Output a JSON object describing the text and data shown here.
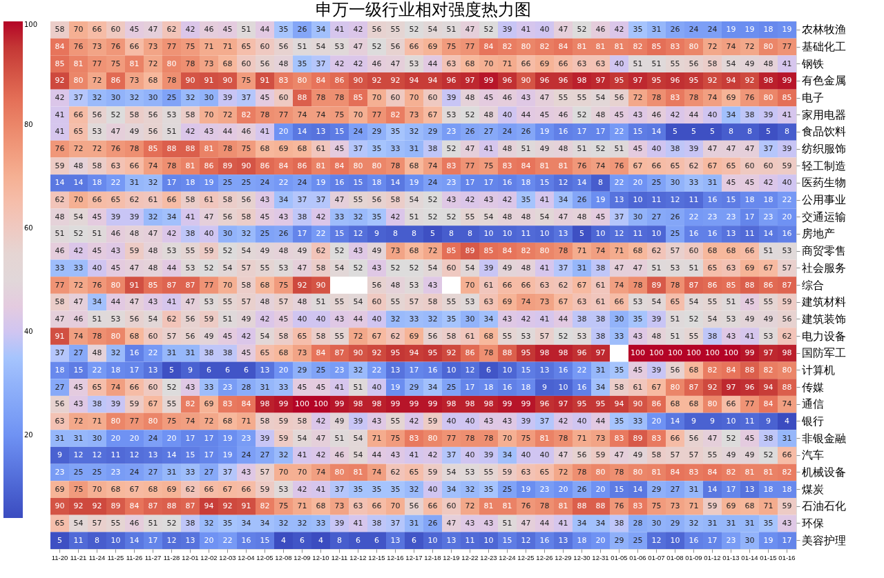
{
  "chart_data": {
    "type": "heatmap",
    "title": "申万一级行业相对强度热力图",
    "categories": [
      "11-20",
      "11-21",
      "11-24",
      "11-25",
      "11-26",
      "11-27",
      "11-28",
      "12-01",
      "12-02",
      "12-03",
      "12-04",
      "12-05",
      "12-08",
      "12-09",
      "12-10",
      "12-11",
      "12-12",
      "12-15",
      "12-16",
      "12-17",
      "12-18",
      "12-19",
      "12-22",
      "12-23",
      "12-24",
      "12-25",
      "12-26",
      "12-29",
      "12-30",
      "12-31",
      "01-05",
      "01-06",
      "01-07",
      "01-08",
      "01-09",
      "01-12",
      "01-13",
      "01-14",
      "01-15",
      "01-16"
    ],
    "y_categories": [
      "农林牧渔",
      "基础化工",
      "钢铁",
      "有色金属",
      "电子",
      "家用电器",
      "食品饮料",
      "纺织服饰",
      "轻工制造",
      "医药生物",
      "公用事业",
      "交通运输",
      "房地产",
      "商贸零售",
      "社会服务",
      "综合",
      "建筑材料",
      "建筑装饰",
      "电力设备",
      "国防军工",
      "计算机",
      "传媒",
      "通信",
      "银行",
      "非银金融",
      "汽车",
      "机械设备",
      "煤炭",
      "石油石化",
      "环保",
      "美容护理"
    ],
    "cells": [
      [
        58,
        70,
        66,
        60,
        45,
        47,
        62,
        42,
        46,
        45,
        51,
        44,
        35,
        26,
        34,
        41,
        42,
        56,
        55,
        52,
        54,
        51,
        47,
        52,
        39,
        41,
        40,
        47,
        52,
        46,
        42,
        35,
        31,
        26,
        24,
        24,
        19,
        19,
        18,
        19
      ],
      [
        84,
        76,
        73,
        76,
        66,
        73,
        77,
        75,
        71,
        71,
        65,
        60,
        56,
        51,
        54,
        53,
        47,
        52,
        56,
        66,
        69,
        75,
        77,
        84,
        82,
        80,
        82,
        84,
        81,
        81,
        81,
        82,
        85,
        83,
        80,
        72,
        74,
        72,
        80,
        77
      ],
      [
        85,
        81,
        77,
        75,
        81,
        72,
        80,
        78,
        73,
        68,
        60,
        56,
        48,
        35,
        37,
        42,
        42,
        46,
        47,
        53,
        44,
        63,
        68,
        70,
        71,
        66,
        69,
        66,
        63,
        63,
        40,
        51,
        51,
        55,
        56,
        58,
        54,
        49,
        48,
        41
      ],
      [
        92,
        80,
        72,
        86,
        73,
        68,
        78,
        90,
        91,
        90,
        75,
        91,
        83,
        80,
        84,
        86,
        90,
        92,
        92,
        94,
        94,
        96,
        97,
        99,
        96,
        90,
        96,
        96,
        98,
        97,
        95,
        97,
        95,
        96,
        95,
        92,
        94,
        92,
        98,
        99
      ],
      [
        42,
        37,
        32,
        30,
        32,
        30,
        25,
        32,
        30,
        39,
        37,
        45,
        60,
        88,
        78,
        78,
        85,
        70,
        60,
        70,
        60,
        39,
        48,
        45,
        46,
        43,
        47,
        55,
        55,
        54,
        56,
        72,
        78,
        83,
        78,
        74,
        69,
        76,
        80,
        85
      ],
      [
        41,
        66,
        56,
        52,
        58,
        56,
        53,
        58,
        70,
        72,
        82,
        78,
        77,
        74,
        74,
        75,
        70,
        77,
        82,
        73,
        67,
        53,
        52,
        48,
        40,
        44,
        45,
        46,
        52,
        48,
        45,
        43,
        46,
        42,
        44,
        40,
        34,
        38,
        39,
        41
      ],
      [
        41,
        65,
        53,
        47,
        49,
        56,
        51,
        42,
        43,
        44,
        46,
        41,
        20,
        14,
        13,
        15,
        24,
        29,
        35,
        32,
        29,
        23,
        26,
        27,
        24,
        26,
        19,
        16,
        17,
        17,
        22,
        15,
        14,
        5,
        5,
        5,
        8,
        8,
        5,
        8
      ],
      [
        76,
        72,
        72,
        76,
        78,
        85,
        88,
        88,
        81,
        78,
        75,
        68,
        69,
        68,
        61,
        45,
        37,
        35,
        33,
        31,
        38,
        52,
        47,
        41,
        48,
        51,
        49,
        48,
        51,
        52,
        51,
        45,
        40,
        38,
        39,
        47,
        47,
        47,
        37,
        39
      ],
      [
        59,
        48,
        58,
        63,
        66,
        74,
        78,
        81,
        86,
        89,
        90,
        86,
        84,
        86,
        81,
        84,
        80,
        80,
        78,
        68,
        74,
        83,
        77,
        75,
        83,
        84,
        81,
        81,
        76,
        74,
        76,
        67,
        66,
        65,
        62,
        67,
        65,
        60,
        60,
        59
      ],
      [
        14,
        14,
        18,
        22,
        31,
        32,
        17,
        18,
        19,
        25,
        25,
        24,
        22,
        24,
        19,
        16,
        15,
        18,
        14,
        19,
        24,
        23,
        17,
        17,
        16,
        18,
        15,
        12,
        14,
        8,
        22,
        20,
        25,
        30,
        33,
        31,
        45,
        45,
        42,
        40
      ],
      [
        62,
        70,
        66,
        65,
        62,
        61,
        66,
        58,
        61,
        58,
        56,
        43,
        34,
        37,
        37,
        47,
        55,
        56,
        58,
        54,
        52,
        43,
        42,
        43,
        42,
        35,
        41,
        34,
        26,
        19,
        13,
        10,
        11,
        12,
        11,
        16,
        15,
        18,
        18,
        22
      ],
      [
        48,
        54,
        45,
        39,
        39,
        32,
        34,
        41,
        47,
        56,
        58,
        45,
        43,
        38,
        42,
        33,
        32,
        35,
        42,
        51,
        52,
        52,
        55,
        54,
        48,
        48,
        54,
        47,
        48,
        45,
        37,
        30,
        27,
        26,
        22,
        23,
        23,
        17,
        23,
        20
      ],
      [
        51,
        52,
        51,
        46,
        48,
        47,
        42,
        38,
        40,
        30,
        32,
        25,
        26,
        17,
        22,
        15,
        12,
        9,
        8,
        8,
        5,
        8,
        8,
        10,
        10,
        11,
        10,
        13,
        5,
        10,
        12,
        11,
        10,
        25,
        16,
        16,
        13,
        11,
        14,
        16
      ],
      [
        46,
        42,
        45,
        43,
        59,
        48,
        53,
        55,
        59,
        52,
        54,
        49,
        48,
        49,
        62,
        52,
        43,
        49,
        73,
        68,
        72,
        85,
        89,
        85,
        84,
        82,
        80,
        78,
        71,
        74,
        71,
        68,
        62,
        57,
        60,
        68,
        68,
        66,
        51,
        53
      ],
      [
        33,
        33,
        40,
        45,
        47,
        48,
        44,
        53,
        52,
        54,
        57,
        55,
        53,
        47,
        58,
        54,
        52,
        43,
        52,
        52,
        54,
        60,
        54,
        39,
        49,
        48,
        41,
        37,
        31,
        38,
        47,
        47,
        51,
        53,
        51,
        65,
        63,
        69,
        67,
        57
      ],
      [
        77,
        72,
        76,
        80,
        91,
        85,
        87,
        87,
        77,
        70,
        58,
        68,
        75,
        92,
        90,
        null,
        null,
        56,
        48,
        53,
        43,
        null,
        70,
        61,
        66,
        66,
        63,
        62,
        67,
        61,
        74,
        78,
        89,
        78,
        87,
        86,
        85,
        88,
        86,
        87
      ],
      [
        58,
        47,
        34,
        44,
        47,
        43,
        41,
        47,
        53,
        55,
        57,
        48,
        57,
        48,
        51,
        55,
        54,
        60,
        55,
        57,
        58,
        55,
        53,
        63,
        69,
        74,
        73,
        67,
        63,
        61,
        66,
        53,
        54,
        65,
        54,
        55,
        51,
        45,
        55,
        59
      ],
      [
        47,
        46,
        51,
        53,
        56,
        54,
        62,
        56,
        59,
        51,
        49,
        42,
        45,
        40,
        40,
        43,
        44,
        40,
        32,
        33,
        32,
        35,
        30,
        34,
        43,
        42,
        41,
        44,
        38,
        38,
        30,
        35,
        39,
        51,
        52,
        54,
        53,
        49,
        49,
        56
      ],
      [
        91,
        74,
        78,
        80,
        68,
        60,
        57,
        56,
        49,
        45,
        42,
        54,
        58,
        65,
        58,
        55,
        72,
        67,
        62,
        69,
        56,
        58,
        61,
        68,
        55,
        53,
        57,
        52,
        53,
        38,
        33,
        43,
        48,
        51,
        55,
        38,
        43,
        41,
        53,
        62
      ],
      [
        37,
        27,
        48,
        32,
        16,
        22,
        31,
        31,
        38,
        38,
        45,
        65,
        68,
        73,
        84,
        87,
        90,
        92,
        95,
        94,
        95,
        92,
        86,
        78,
        88,
        95,
        98,
        98,
        96,
        97,
        null,
        100,
        100,
        100,
        100,
        100,
        100,
        99,
        97,
        98
      ],
      [
        18,
        15,
        22,
        18,
        17,
        13,
        5,
        9,
        6,
        6,
        6,
        13,
        20,
        29,
        25,
        23,
        32,
        22,
        13,
        17,
        16,
        10,
        12,
        6,
        10,
        15,
        13,
        16,
        22,
        31,
        35,
        45,
        39,
        56,
        68,
        82,
        84,
        88,
        82,
        80
      ],
      [
        27,
        45,
        65,
        74,
        66,
        60,
        52,
        43,
        33,
        23,
        28,
        31,
        33,
        45,
        45,
        41,
        51,
        40,
        19,
        29,
        34,
        25,
        17,
        18,
        16,
        18,
        9,
        10,
        16,
        34,
        58,
        61,
        67,
        80,
        87,
        92,
        97,
        96,
        94,
        88
      ],
      [
        56,
        43,
        38,
        39,
        59,
        67,
        55,
        82,
        69,
        83,
        84,
        98,
        99,
        100,
        100,
        99,
        98,
        98,
        99,
        99,
        99,
        98,
        98,
        98,
        99,
        99,
        96,
        97,
        95,
        95,
        94,
        90,
        86,
        68,
        68,
        80,
        66,
        77,
        84,
        74
      ],
      [
        63,
        72,
        71,
        80,
        77,
        80,
        75,
        74,
        72,
        68,
        71,
        58,
        59,
        58,
        42,
        49,
        39,
        43,
        55,
        42,
        59,
        40,
        40,
        43,
        43,
        39,
        37,
        42,
        40,
        44,
        35,
        33,
        20,
        14,
        9,
        9,
        10,
        11,
        9,
        4
      ],
      [
        31,
        31,
        30,
        20,
        20,
        24,
        20,
        17,
        17,
        19,
        23,
        39,
        59,
        54,
        47,
        51,
        54,
        71,
        75,
        83,
        80,
        77,
        78,
        78,
        70,
        75,
        81,
        78,
        71,
        73,
        83,
        89,
        83,
        66,
        56,
        47,
        52,
        45,
        38,
        31
      ],
      [
        9,
        12,
        12,
        11,
        12,
        13,
        14,
        15,
        17,
        19,
        24,
        27,
        32,
        41,
        42,
        46,
        54,
        44,
        43,
        41,
        42,
        37,
        40,
        39,
        34,
        40,
        40,
        47,
        56,
        59,
        47,
        49,
        58,
        57,
        57,
        55,
        49,
        49,
        52,
        66
      ],
      [
        23,
        25,
        25,
        23,
        24,
        27,
        31,
        33,
        27,
        37,
        43,
        57,
        70,
        70,
        74,
        80,
        81,
        74,
        62,
        65,
        59,
        54,
        53,
        55,
        59,
        63,
        65,
        72,
        78,
        80,
        78,
        80,
        81,
        84,
        83,
        84,
        82,
        81,
        81,
        82
      ],
      [
        69,
        75,
        70,
        68,
        67,
        68,
        69,
        62,
        66,
        67,
        66,
        59,
        53,
        42,
        41,
        37,
        35,
        35,
        35,
        32,
        40,
        34,
        32,
        35,
        25,
        19,
        23,
        20,
        26,
        20,
        15,
        14,
        29,
        27,
        31,
        14,
        17,
        13,
        18,
        18
      ],
      [
        90,
        92,
        92,
        89,
        84,
        87,
        88,
        87,
        94,
        92,
        91,
        82,
        75,
        71,
        68,
        73,
        63,
        66,
        70,
        56,
        66,
        60,
        72,
        81,
        81,
        76,
        78,
        81,
        88,
        88,
        76,
        83,
        75,
        73,
        71,
        59,
        69,
        68,
        71,
        59
      ],
      [
        65,
        54,
        57,
        55,
        46,
        51,
        52,
        38,
        32,
        35,
        34,
        34,
        32,
        32,
        33,
        39,
        41,
        38,
        37,
        31,
        26,
        47,
        43,
        43,
        51,
        47,
        44,
        41,
        34,
        34,
        38,
        28,
        30,
        29,
        32,
        31,
        31,
        31,
        35,
        43
      ],
      [
        5,
        11,
        8,
        10,
        14,
        17,
        12,
        13,
        20,
        22,
        16,
        15,
        4,
        6,
        4,
        8,
        6,
        6,
        13,
        6,
        10,
        13,
        11,
        10,
        15,
        12,
        16,
        13,
        18,
        20,
        29,
        25,
        12,
        10,
        16,
        17,
        23,
        30,
        19,
        17
      ]
    ],
    "data_labels": true,
    "clim": [
      4,
      100
    ],
    "cticks": [
      20,
      40,
      60,
      80,
      100
    ]
  }
}
